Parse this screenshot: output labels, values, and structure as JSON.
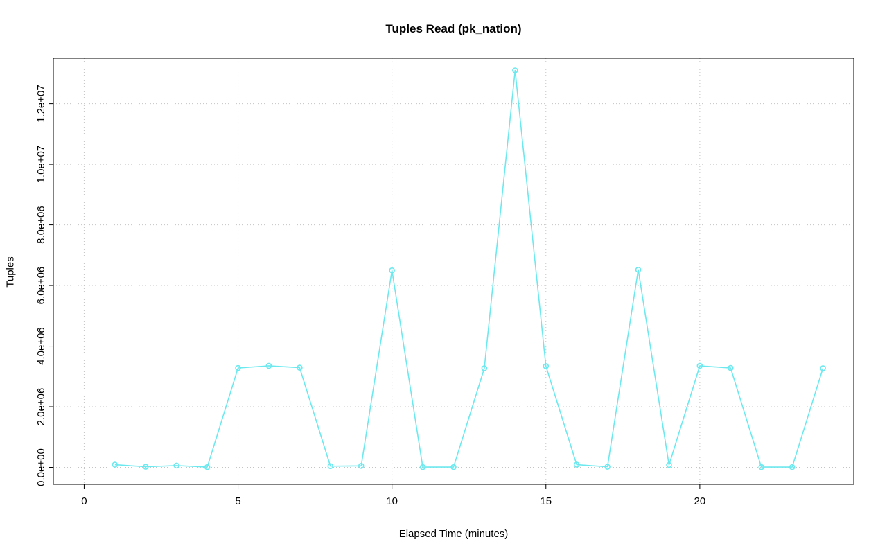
{
  "chart_data": {
    "type": "line",
    "title": "Tuples Read (pk_nation)",
    "xlabel": "Elapsed Time (minutes)",
    "ylabel": "Tuples",
    "x": [
      1,
      2,
      3,
      4,
      5,
      6,
      7,
      8,
      9,
      10,
      11,
      12,
      13,
      14,
      15,
      16,
      17,
      18,
      19,
      20,
      21,
      22,
      23,
      24
    ],
    "y": [
      90000,
      20000,
      60000,
      10000,
      3280000,
      3350000,
      3290000,
      40000,
      50000,
      6500000,
      10000,
      10000,
      3270000,
      13100000,
      3340000,
      90000,
      20000,
      6520000,
      80000,
      3350000,
      3280000,
      10000,
      10000,
      3270000
    ],
    "xlim": [
      -1,
      25
    ],
    "ylim": [
      -560000,
      13500000
    ],
    "xticks": [
      0,
      5,
      10,
      15,
      20
    ],
    "yticks": [
      0,
      2000000,
      4000000,
      6000000,
      8000000,
      10000000,
      12000000
    ],
    "ytick_labels": [
      "0.0e+00",
      "2.0e+06",
      "4.0e+06",
      "6.0e+06",
      "8.0e+06",
      "1.0e+07",
      "1.2e+07"
    ],
    "line_color": "#6ce9ef",
    "grid_color": "#c4c4c4",
    "axis_color": "#000000",
    "legend": "none",
    "grid": "dotted"
  }
}
